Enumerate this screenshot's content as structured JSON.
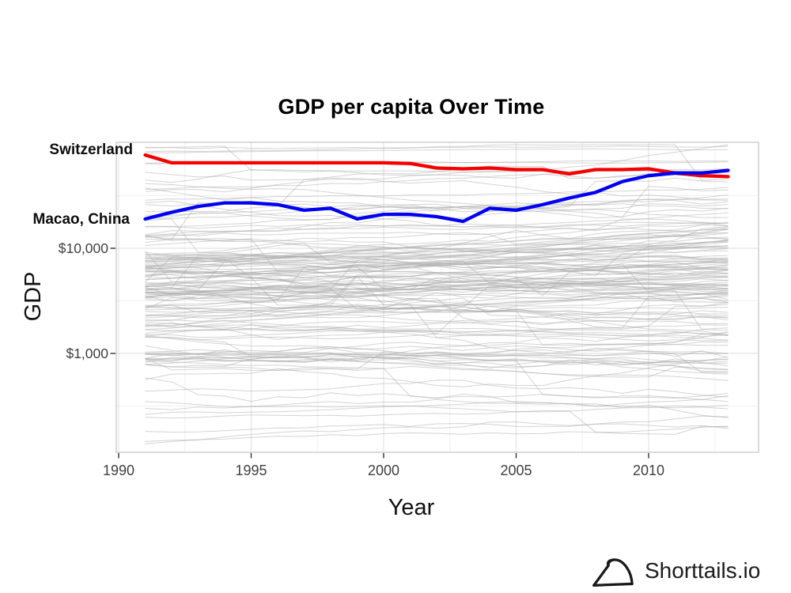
{
  "title": {
    "text": "GDP per capita Over Time"
  },
  "axes": {
    "x": {
      "label": "Year",
      "ticks": [
        {
          "label": "1990",
          "year": 1990
        },
        {
          "label": "1995",
          "year": 1995
        },
        {
          "label": "2000",
          "year": 2000
        },
        {
          "label": "2005",
          "year": 2005
        },
        {
          "label": "2010",
          "year": 2010
        }
      ]
    },
    "y": {
      "label": "GDP",
      "ticks": [
        {
          "label": "$10,000",
          "value": 10000
        },
        {
          "label": "$1,000",
          "value": 1000
        }
      ]
    }
  },
  "series_labels": [
    {
      "text": "Switzerland",
      "color": "#f40000"
    },
    {
      "text": "Macao, China",
      "color": "#0000f0"
    }
  ],
  "branding": {
    "label": "Shorttails.io",
    "icon": "shorttails-logo-icon"
  },
  "chart_data": {
    "type": "line",
    "title": "GDP per capita Over Time",
    "xlabel": "Year",
    "ylabel": "GDP",
    "y_scale": "log10",
    "x_range": [
      1990,
      2014
    ],
    "ylim_approx": [
      120,
      100000
    ],
    "x_tick_values": [
      1990,
      1995,
      2000,
      2005,
      2010
    ],
    "x_tick_labels": [
      "1990",
      "1995",
      "2000",
      "2005",
      "2010"
    ],
    "y_tick_values": [
      10000,
      1000
    ],
    "y_tick_labels": [
      "$10,000",
      "$1,000"
    ],
    "grid": true,
    "legend": "direct-left-labels",
    "x": [
      1991,
      1992,
      1993,
      1994,
      1995,
      1996,
      1997,
      1998,
      1999,
      2000,
      2001,
      2002,
      2003,
      2004,
      2005,
      2006,
      2007,
      2008,
      2009,
      2010,
      2011,
      2012,
      2013
    ],
    "series": [
      {
        "name": "Switzerland",
        "color": "#f40000",
        "values": [
          77000,
          65000,
          65000,
          65000,
          65000,
          65000,
          65000,
          65000,
          65000,
          65000,
          64000,
          58000,
          57000,
          58000,
          56000,
          56000,
          51000,
          56000,
          56000,
          57000,
          52000,
          49000,
          48000
        ]
      },
      {
        "name": "Macao, China",
        "color": "#0000f0",
        "values": [
          19000,
          22000,
          25000,
          27000,
          27000,
          26000,
          23000,
          24000,
          19000,
          21000,
          21000,
          20000,
          18000,
          24000,
          23000,
          26000,
          30000,
          34000,
          43000,
          49000,
          52000,
          52000,
          55000
        ]
      }
    ],
    "background_series": {
      "note": "unlabeled gray lines for all other countries (decorative spaghetti)",
      "count": 150,
      "color": "#aaaaaa",
      "opacity": 0.5,
      "seed": 7,
      "log10_value_range": [
        2.08,
        4.985
      ]
    }
  }
}
